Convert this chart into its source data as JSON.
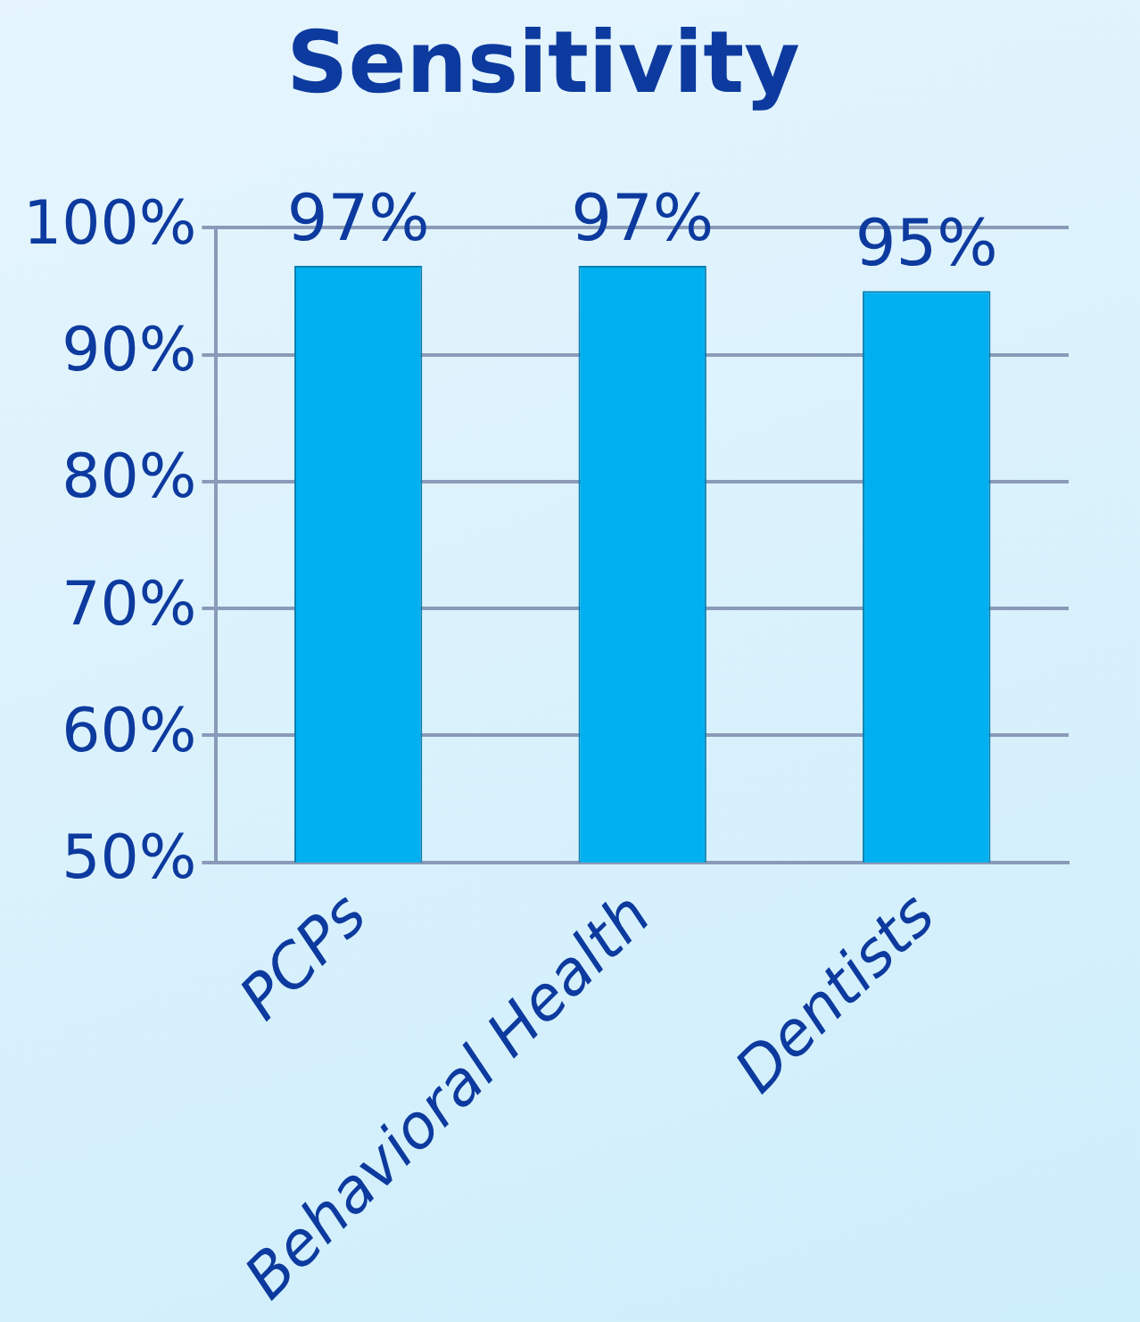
{
  "chart_data": {
    "type": "bar",
    "title": "Sensitivity",
    "categories": [
      "PCPs",
      "Behavioral Health",
      "Dentists"
    ],
    "values": [
      97,
      97,
      95
    ],
    "color": "#00b0f0",
    "value_labels": [
      "97%",
      "97%",
      "95%"
    ],
    "ylim": [
      50,
      100
    ],
    "yticks": [
      {
        "value": 50,
        "label": "50%"
      },
      {
        "value": 60,
        "label": "60%"
      },
      {
        "value": 70,
        "label": "70%"
      },
      {
        "value": 80,
        "label": "80%"
      },
      {
        "value": 90,
        "label": "90%"
      },
      {
        "value": 100,
        "label": "100%"
      }
    ],
    "grid": "y"
  }
}
